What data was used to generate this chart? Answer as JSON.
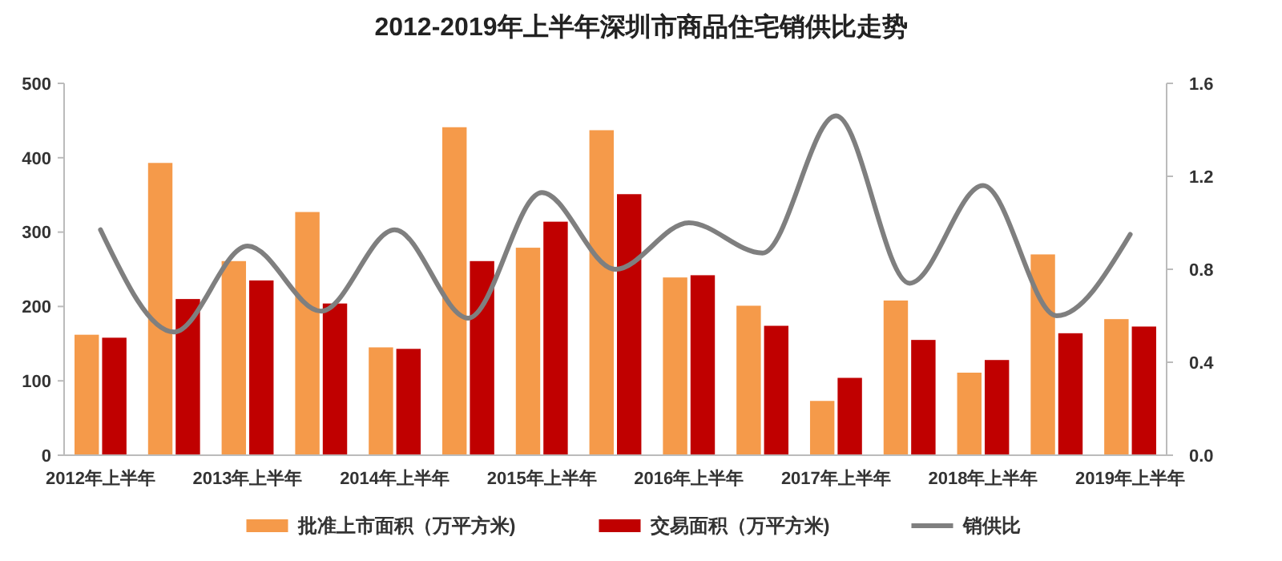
{
  "chart_data": {
    "type": "bar",
    "title": "2012-2019年上半年深圳市商品住宅销供比走势",
    "categories": [
      "2012年上半年",
      null,
      "2013年上半年",
      null,
      "2014年上半年",
      null,
      "2015年上半年",
      null,
      "2016年上半年",
      null,
      "2017年上半年",
      null,
      "2018年上半年",
      null,
      "2019年上半年"
    ],
    "series": [
      {
        "name": "批准上市面积（万平方米)",
        "color": "#f59a4a",
        "values": [
          162,
          393,
          261,
          327,
          145,
          441,
          279,
          437,
          239,
          201,
          73,
          208,
          111,
          270,
          183
        ]
      },
      {
        "name": "交易面积（万平方米)",
        "color": "#c00000",
        "values": [
          158,
          210,
          235,
          204,
          143,
          261,
          314,
          351,
          242,
          174,
          104,
          155,
          128,
          164,
          173
        ]
      },
      {
        "name": "销供比",
        "type": "line",
        "axis": "y2",
        "color": "#7f7f7f",
        "values": [
          0.97,
          0.53,
          0.9,
          0.62,
          0.97,
          0.59,
          1.13,
          0.8,
          1.0,
          0.87,
          1.46,
          0.74,
          1.16,
          0.6,
          0.95
        ]
      }
    ],
    "ylim": [
      0,
      500
    ],
    "yticks": [
      0,
      100,
      200,
      300,
      400,
      500
    ],
    "y2lim": [
      0,
      1.6
    ],
    "y2ticks": [
      {
        "value": 0,
        "label": "0.0"
      },
      {
        "value": 0.4,
        "label": "0.4"
      },
      {
        "value": 0.8,
        "label": "0.8"
      },
      {
        "value": 1.2,
        "label": "1.2"
      },
      {
        "value": 1.6,
        "label": "1.6"
      }
    ],
    "grid": false,
    "legend": "bottom",
    "marker": "none",
    "line_style": "solid"
  }
}
